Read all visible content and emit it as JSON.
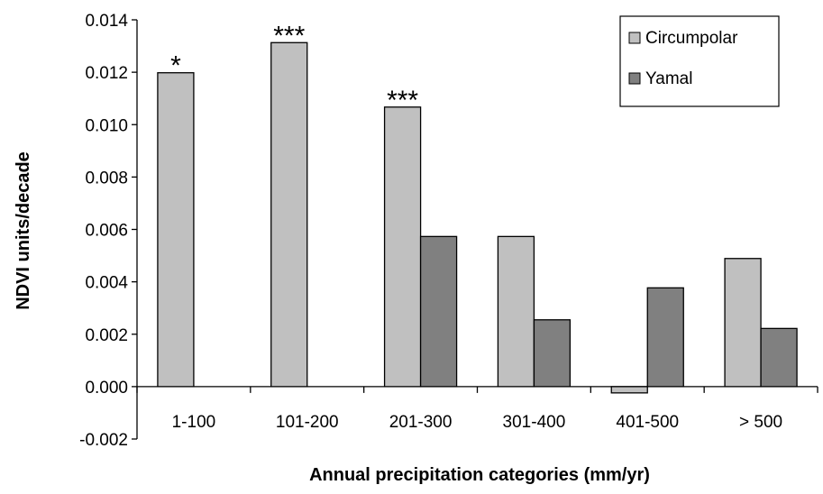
{
  "chart_data": {
    "type": "bar",
    "title": "",
    "xlabel": "Annual precipitation categories (mm/yr)",
    "ylabel": "NDVI units/decade",
    "ylim": [
      -0.002,
      0.014
    ],
    "yticks": [
      "0.014",
      "0.012",
      "0.010",
      "0.008",
      "0.006",
      "0.004",
      "0.002",
      "0.000",
      "-0.002"
    ],
    "categories": [
      "1-100",
      "101-200",
      "201-300",
      "301-400",
      "401-500",
      "> 500"
    ],
    "series": [
      {
        "name": "Circumpolar",
        "color": "#c0c0c0",
        "values": [
          0.01198,
          0.01313,
          0.01067,
          0.00573,
          -0.00024,
          0.00489
        ]
      },
      {
        "name": "Yamal",
        "color": "#808080",
        "values": [
          null,
          null,
          0.00573,
          0.00255,
          0.00377,
          0.00222
        ]
      }
    ],
    "annotations": [
      {
        "category": "1-100",
        "series": "Circumpolar",
        "text": "*"
      },
      {
        "category": "101-200",
        "series": "Circumpolar",
        "text": "***"
      },
      {
        "category": "201-300",
        "series": "Circumpolar",
        "text": "***"
      }
    ],
    "legend_position": "top-right",
    "grid": false
  }
}
